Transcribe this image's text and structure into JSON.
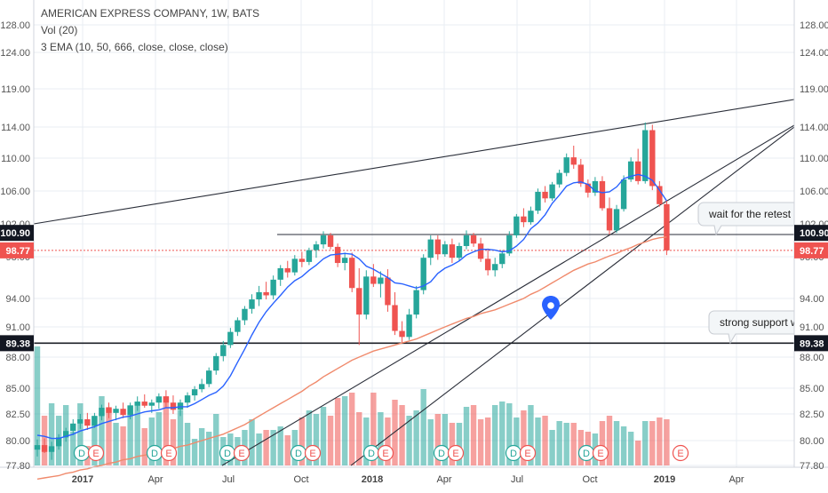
{
  "legend": {
    "title": "AMERICAN EXPRESS COMPANY, 1W, BATS",
    "volume": "Vol (20)",
    "ema": "3 EMA (10, 50, 666, close, close, close)"
  },
  "callouts": {
    "retest": "wait for the retest he",
    "support": "strong support wo"
  },
  "price_tags": {
    "resistance": "100.90",
    "last": "98.77",
    "support": "89.38"
  },
  "event_badges": [
    "D",
    "E",
    "D",
    "E",
    "D",
    "E",
    "D",
    "E",
    "D",
    "E",
    "D",
    "E",
    "D",
    "E",
    "D",
    "E",
    "E"
  ],
  "colors": {
    "up": "#26a69a",
    "down": "#ef5350",
    "ema_fast": "#2962ff",
    "ema_slow": "#f08a6c",
    "last_price": "#ef5350",
    "grid": "#e9eef3"
  },
  "chart_data": {
    "type": "candlestick",
    "interval": "1W",
    "y_ticks": [
      "77.80",
      "80.00",
      "82.50",
      "85.00",
      "88.00",
      "91.00",
      "94.00",
      "98.00",
      "102.00",
      "106.00",
      "110.00",
      "114.00",
      "119.00",
      "124.00",
      "128.00"
    ],
    "x_ticks": [
      "2017",
      "Apr",
      "Jul",
      "Oct",
      "2018",
      "Apr",
      "Jul",
      "Oct",
      "2019",
      "Apr"
    ],
    "ylim": [
      77.8,
      128.0
    ],
    "last_price": 98.77,
    "horizontal_levels": [
      100.9,
      98.77,
      89.38
    ],
    "candles": [
      [
        79.2,
        80.1,
        78.6,
        79.6
      ],
      [
        79.6,
        80.2,
        78.9,
        79.0
      ],
      [
        79.0,
        79.9,
        78.3,
        79.5
      ],
      [
        79.5,
        80.6,
        79.2,
        80.3
      ],
      [
        80.3,
        81.2,
        79.9,
        80.9
      ],
      [
        80.9,
        82.0,
        80.5,
        81.6
      ],
      [
        81.6,
        82.5,
        81.1,
        82.0
      ],
      [
        82.0,
        82.6,
        81.0,
        81.4
      ],
      [
        81.4,
        82.6,
        81.2,
        82.3
      ],
      [
        82.3,
        83.4,
        81.9,
        83.1
      ],
      [
        83.1,
        83.6,
        82.1,
        82.6
      ],
      [
        82.6,
        83.3,
        81.9,
        83.0
      ],
      [
        83.0,
        83.6,
        82.1,
        82.4
      ],
      [
        82.4,
        83.6,
        82.0,
        83.3
      ],
      [
        83.3,
        84.2,
        82.8,
        83.7
      ],
      [
        83.7,
        84.4,
        83.1,
        83.3
      ],
      [
        83.3,
        83.9,
        82.6,
        83.6
      ],
      [
        83.6,
        84.5,
        83.0,
        84.2
      ],
      [
        84.2,
        84.8,
        83.1,
        83.6
      ],
      [
        83.6,
        84.3,
        82.5,
        82.9
      ],
      [
        82.9,
        83.9,
        82.3,
        83.6
      ],
      [
        83.6,
        84.6,
        83.1,
        84.3
      ],
      [
        84.3,
        85.2,
        83.8,
        84.9
      ],
      [
        84.9,
        85.9,
        84.6,
        85.4
      ],
      [
        85.4,
        87.0,
        85.1,
        86.7
      ],
      [
        86.7,
        88.4,
        86.3,
        88.1
      ],
      [
        88.1,
        89.6,
        87.6,
        89.2
      ],
      [
        89.2,
        90.9,
        88.9,
        90.5
      ],
      [
        90.5,
        92.0,
        90.1,
        91.7
      ],
      [
        91.7,
        93.2,
        91.2,
        92.9
      ],
      [
        92.9,
        94.4,
        92.4,
        93.9
      ],
      [
        93.9,
        95.2,
        93.2,
        94.6
      ],
      [
        94.6,
        95.6,
        93.9,
        94.3
      ],
      [
        94.3,
        96.2,
        93.9,
        95.8
      ],
      [
        95.8,
        97.2,
        95.2,
        96.9
      ],
      [
        96.9,
        97.6,
        96.0,
        96.5
      ],
      [
        96.5,
        98.2,
        96.2,
        97.8
      ],
      [
        97.8,
        98.6,
        97.0,
        97.5
      ],
      [
        97.5,
        99.1,
        97.2,
        98.8
      ],
      [
        98.8,
        99.9,
        97.9,
        99.5
      ],
      [
        99.5,
        101.1,
        99.0,
        100.6
      ],
      [
        100.6,
        100.9,
        98.9,
        99.2
      ],
      [
        99.2,
        99.6,
        97.0,
        97.4
      ],
      [
        97.4,
        98.5,
        96.7,
        97.9
      ],
      [
        97.9,
        98.5,
        94.6,
        95.0
      ],
      [
        95.0,
        96.9,
        89.2,
        92.3
      ],
      [
        92.3,
        96.7,
        91.8,
        96.1
      ],
      [
        96.1,
        97.3,
        95.1,
        95.4
      ],
      [
        95.4,
        96.6,
        94.1,
        96.0
      ],
      [
        96.0,
        96.8,
        92.6,
        93.3
      ],
      [
        93.3,
        94.6,
        90.2,
        90.6
      ],
      [
        90.6,
        91.6,
        89.4,
        90.0
      ],
      [
        90.0,
        92.9,
        89.7,
        92.3
      ],
      [
        92.3,
        95.2,
        91.9,
        94.8
      ],
      [
        94.8,
        98.3,
        94.4,
        97.9
      ],
      [
        97.9,
        100.6,
        97.2,
        100.1
      ],
      [
        100.1,
        100.6,
        97.7,
        98.3
      ],
      [
        98.3,
        99.9,
        98.0,
        99.5
      ],
      [
        99.5,
        100.2,
        97.4,
        97.9
      ],
      [
        97.9,
        99.7,
        97.6,
        99.3
      ],
      [
        99.3,
        101.2,
        98.9,
        100.6
      ],
      [
        100.6,
        100.9,
        99.2,
        99.6
      ],
      [
        99.6,
        100.3,
        97.5,
        97.8
      ],
      [
        97.8,
        99.0,
        96.2,
        96.7
      ],
      [
        96.7,
        97.9,
        96.1,
        97.3
      ],
      [
        97.3,
        98.8,
        96.9,
        98.4
      ],
      [
        98.4,
        101.1,
        98.1,
        100.6
      ],
      [
        100.6,
        103.2,
        100.3,
        102.9
      ],
      [
        102.9,
        103.9,
        101.6,
        102.2
      ],
      [
        102.2,
        104.1,
        101.9,
        103.6
      ],
      [
        103.6,
        106.3,
        103.2,
        105.9
      ],
      [
        105.9,
        106.6,
        104.6,
        105.1
      ],
      [
        105.1,
        107.1,
        104.8,
        106.8
      ],
      [
        106.8,
        108.6,
        106.4,
        108.2
      ],
      [
        108.2,
        110.6,
        107.8,
        110.1
      ],
      [
        110.1,
        111.6,
        108.7,
        109.2
      ],
      [
        109.2,
        109.9,
        106.5,
        106.9
      ],
      [
        106.9,
        107.4,
        105.2,
        105.8
      ],
      [
        105.8,
        107.7,
        105.4,
        107.2
      ],
      [
        107.2,
        107.8,
        103.6,
        103.9
      ],
      [
        103.9,
        105.2,
        100.7,
        101.2
      ],
      [
        101.2,
        104.3,
        100.9,
        103.8
      ],
      [
        103.8,
        107.9,
        103.5,
        107.4
      ],
      [
        107.4,
        110.1,
        107.1,
        109.6
      ],
      [
        109.6,
        111.2,
        106.8,
        107.2
      ],
      [
        107.2,
        114.6,
        106.9,
        113.6
      ],
      [
        113.6,
        114.3,
        106.1,
        106.6
      ],
      [
        106.6,
        107.2,
        104.1,
        104.4
      ],
      [
        104.4,
        104.9,
        98.2,
        98.77
      ]
    ],
    "volume": [
      67,
      28,
      35,
      28,
      34,
      19,
      35,
      11,
      28,
      39,
      33,
      24,
      22,
      34,
      34,
      21,
      27,
      30,
      39,
      26,
      31,
      24,
      15,
      21,
      19,
      29,
      16,
      18,
      16,
      20,
      26,
      18,
      20,
      20,
      22,
      17,
      20,
      27,
      31,
      29,
      33,
      28,
      38,
      39,
      41,
      30,
      27,
      41,
      30,
      27,
      37,
      34,
      28,
      31,
      43,
      26,
      29,
      29,
      24,
      24,
      33,
      34,
      26,
      27,
      34,
      36,
      35,
      27,
      31,
      34,
      27,
      28,
      20,
      25,
      24,
      24,
      20,
      19,
      18,
      25,
      28,
      25,
      22,
      19,
      14,
      25,
      25,
      27,
      26
    ],
    "ema_10": [
      80.5,
      80.4,
      80.2,
      80.2,
      80.4,
      80.6,
      80.9,
      81.1,
      81.3,
      81.6,
      81.8,
      82.0,
      82.2,
      82.3,
      82.5,
      82.7,
      82.8,
      82.9,
      83.1,
      83.1,
      83.2,
      83.2,
      83.5,
      83.9,
      84.3,
      84.6,
      85.2,
      86.2,
      87.5,
      88.8,
      90.2,
      91.5,
      92.6,
      93.5,
      94.3,
      95.1,
      95.7,
      96.1,
      96.7,
      97.2,
      97.8,
      98.2,
      98.3,
      98.4,
      98.3,
      97.8,
      97.1,
      96.8,
      96.4,
      96.0,
      95.5,
      95.4,
      95.2,
      95.0,
      95.2,
      95.6,
      96.4,
      96.9,
      97.2,
      97.6,
      98.2,
      98.6,
      98.9,
      98.9,
      98.8,
      98.6,
      98.7,
      99.3,
      100.1,
      101.4,
      102.1,
      103.1,
      104.5,
      105.5,
      106.6,
      107.0,
      107.1,
      106.8,
      106.0,
      105.8,
      105.9,
      106.5,
      107.5,
      107.8,
      108.0,
      107.8,
      107.3,
      106.1,
      104.8
    ],
    "ema_50": [
      76.6,
      76.7,
      76.8,
      76.9,
      77.1,
      77.2,
      77.4,
      77.5,
      77.7,
      77.8,
      78.0,
      78.1,
      78.3,
      78.4,
      78.6,
      78.7,
      78.9,
      79.0,
      79.2,
      79.3,
      79.5,
      79.6,
      79.8,
      80.0,
      80.2,
      80.4,
      80.6,
      80.9,
      81.2,
      81.5,
      81.9,
      82.3,
      82.7,
      83.1,
      83.5,
      83.9,
      84.3,
      84.7,
      85.2,
      85.6,
      86.1,
      86.5,
      86.9,
      87.3,
      87.7,
      88.0,
      88.3,
      88.6,
      88.8,
      89.0,
      89.2,
      89.4,
      89.6,
      89.8,
      90.1,
      90.4,
      90.7,
      91.0,
      91.3,
      91.6,
      91.9,
      92.1,
      92.4,
      92.6,
      92.8,
      93.1,
      93.4,
      93.7,
      94.0,
      94.4,
      94.7,
      95.1,
      95.5,
      95.9,
      96.3,
      96.7,
      97.0,
      97.3,
      97.5,
      97.8,
      98.1,
      98.4,
      98.8,
      99.1,
      99.5,
      99.8,
      100.1,
      100.3,
      100.4
    ]
  }
}
